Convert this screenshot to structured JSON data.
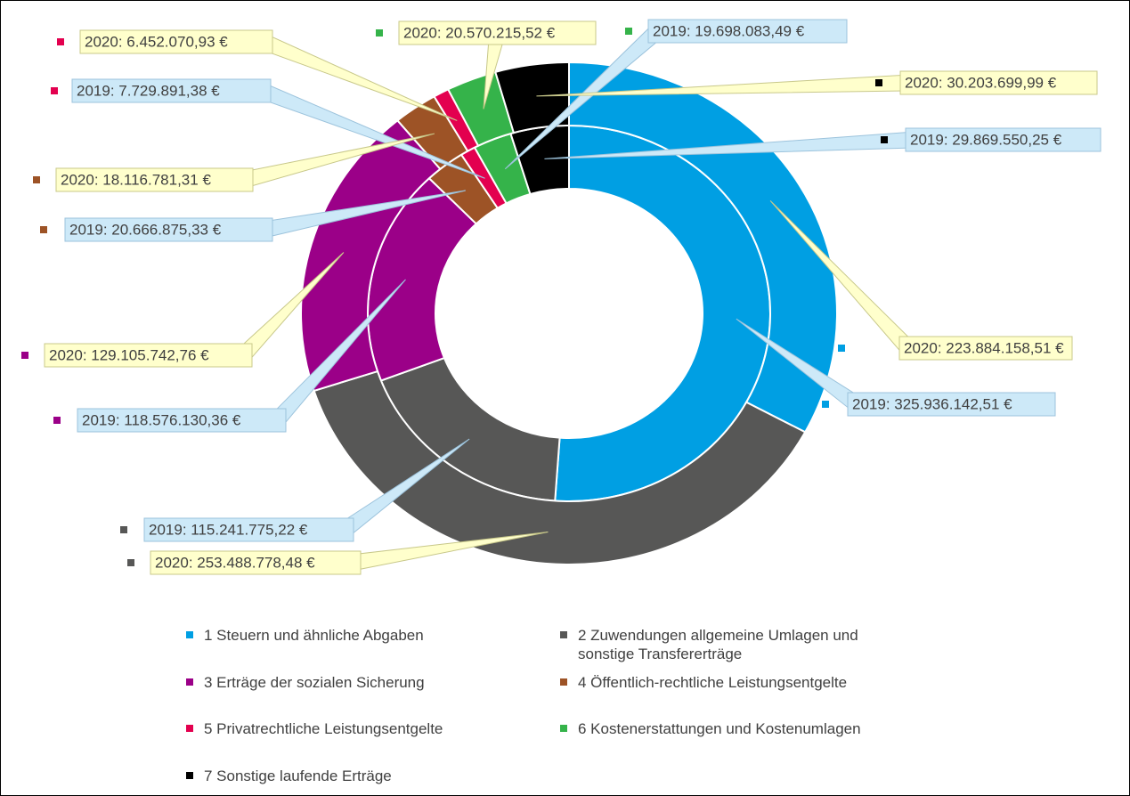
{
  "chart_data": {
    "type": "doughnut",
    "categories": [
      "1 Steuern und ähnliche Abgaben",
      "2 Zuwendungen allgemeine Umlagen und sonstige Transfererträge",
      "3 Erträge der sozialen Sicherung",
      "4 Öffentlich-rechtliche Leistungsentgelte",
      "5 Privatrechtliche Leistungsentgelte",
      "6 Kostenerstattungen und Kostenumlagen",
      "7 Sonstige laufende Erträge"
    ],
    "colors": [
      "#009fe3",
      "#575756",
      "#9b0088",
      "#9d5326",
      "#e3004f",
      "#35b34a",
      "#000000"
    ],
    "series": [
      {
        "values": [
          325936142.51,
          115241775.22,
          118576130.36,
          20666875.33,
          7729891.38,
          19698083.49,
          29869550.25
        ],
        "value_labels": [
          "2019: 325.936.142,51 €",
          "2019: 115.241.775,22 €",
          "2019: 118.576.130,36 €",
          "2019: 20.666.875,33 €",
          "2019: 7.729.891,38 €",
          "2019: 19.698.083,49 €",
          "2019: 29.869.550,25 €"
        ]
      },
      {
        "values": [
          223884158.51,
          253488778.48,
          129105742.76,
          18116781.31,
          6452070.93,
          20570215.52,
          30203699.99
        ],
        "value_labels": [
          "2020: 223.884.158,51 €",
          "2020: 253.488.778,48 €",
          "2020: 129.105.742,76 €",
          "2020: 18.116.781,31 €",
          "2020: 6.452.070,93 €",
          "2020: 20.570.215,52 €",
          "2020: 30.203.699,99 €"
        ]
      }
    ],
    "legend": "bottom"
  }
}
